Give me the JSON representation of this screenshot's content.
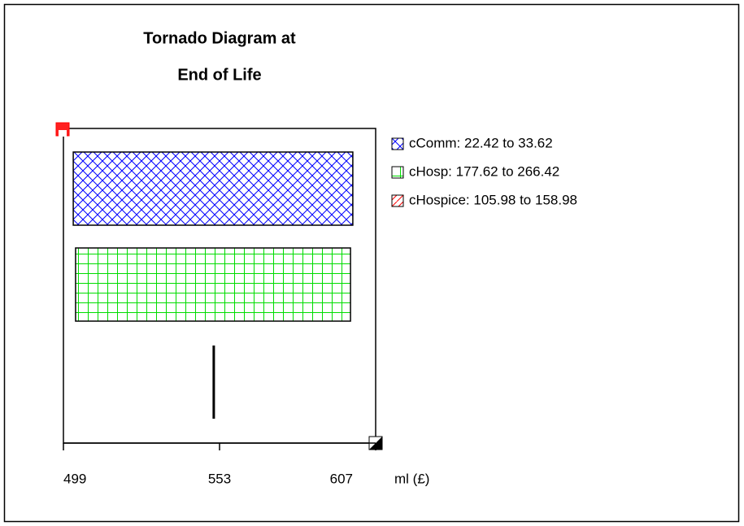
{
  "chart_data": {
    "type": "tornado",
    "title": [
      "Tornado Diagram at",
      "End of Life"
    ],
    "xlabel": "ml (£)",
    "xlim": [
      499,
      607
    ],
    "xticks": [
      499,
      553,
      607
    ],
    "series": [
      {
        "label": "cComm: 22.42 to 33.62",
        "color": "#0000ff",
        "pattern": "crosshatch",
        "values": [
          502.4,
          599.1
        ]
      },
      {
        "label": "cHosp: 177.62 to 266.42",
        "color": "#00dd00",
        "pattern": "grid",
        "values": [
          503.2,
          598.3
        ]
      },
      {
        "label": "cHospice: 105.98 to 158.98",
        "color": "#ff0000",
        "pattern": "diagonal",
        "values": [
          551.0,
          551.0
        ]
      }
    ]
  }
}
